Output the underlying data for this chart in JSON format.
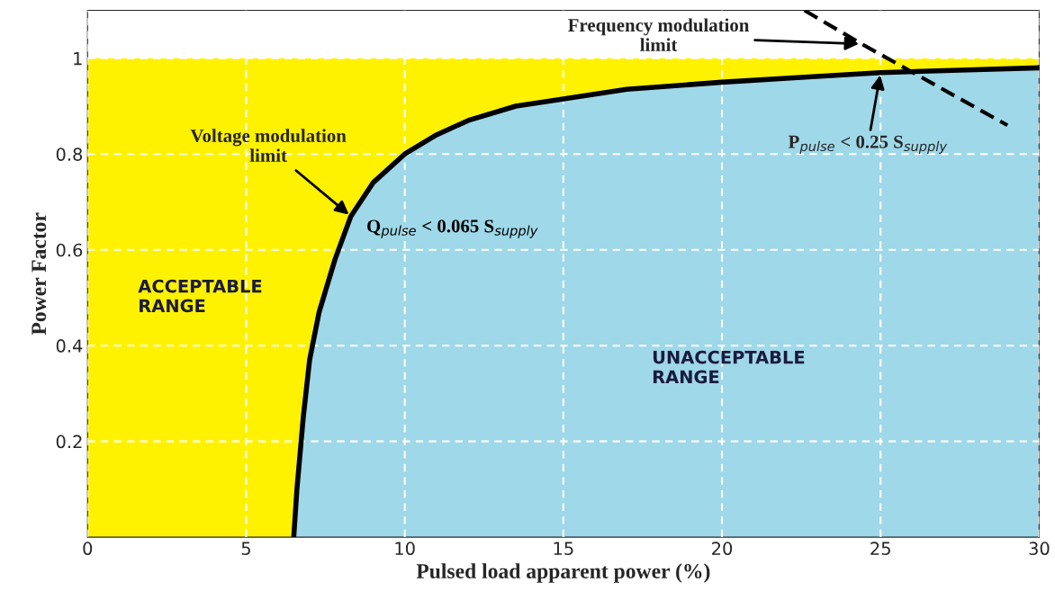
{
  "chart_data": {
    "type": "area",
    "xlabel": "Pulsed load apparent power (%)",
    "ylabel": "Power Factor",
    "xlim": [
      0,
      30
    ],
    "ylim": [
      0,
      1.1
    ],
    "xticks": [
      0,
      5,
      10,
      15,
      20,
      25,
      30
    ],
    "yticks": [
      0.2,
      0.4,
      0.6,
      0.8,
      1
    ],
    "grid": true,
    "line_style": "solid",
    "bands": [
      {
        "axis": "y",
        "from": 0,
        "to": 1,
        "color": "#fff200"
      }
    ],
    "series": [
      {
        "color": "#9fd8e8",
        "x": [
          6.5,
          6.6,
          6.8,
          7.0,
          7.3,
          7.8,
          8.3,
          9.0,
          10,
          11,
          12,
          13.5,
          15,
          17,
          20,
          22.5,
          25,
          27.5,
          30
        ],
        "values": [
          0,
          0.1,
          0.25,
          0.37,
          0.47,
          0.58,
          0.67,
          0.74,
          0.8,
          0.84,
          0.87,
          0.9,
          0.915,
          0.935,
          0.95,
          0.96,
          0.97,
          0.975,
          0.98
        ]
      },
      {
        "type": "line",
        "color": "#000000",
        "line_style": "dashed",
        "x": [
          22.6,
          24.4,
          29.0
        ],
        "values": [
          1.1,
          1.03,
          0.86
        ]
      }
    ],
    "annotations": [
      {
        "text": "Frequency modulation\nlimit",
        "x": 24.4,
        "y": 1.03
      },
      {
        "text": "Voltage modulation\nlimit",
        "x": 8.3,
        "y": 0.67
      },
      {
        "text": "P$_{pulse}$ < 0.25 S$_{supply}$",
        "x": 25,
        "y": 0.97
      },
      "Q$_{pulse}$ < 0.065 S$_{supply}$",
      "ACCEPTABLE\nRANGE",
      "UNACCEPTABLE\nRANGE"
    ]
  }
}
